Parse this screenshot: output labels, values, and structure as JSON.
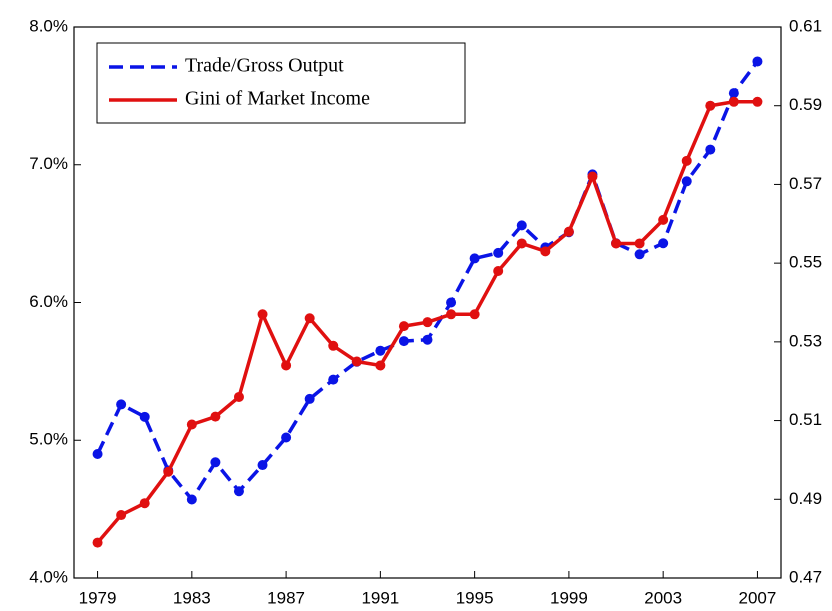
{
  "chart_data": {
    "type": "line",
    "x": [
      1979,
      1980,
      1981,
      1982,
      1983,
      1984,
      1985,
      1986,
      1987,
      1988,
      1989,
      1990,
      1991,
      1992,
      1993,
      1994,
      1995,
      1996,
      1997,
      1998,
      1999,
      2000,
      2001,
      2002,
      2003,
      2004,
      2005,
      2006,
      2007
    ],
    "series": [
      {
        "name": "Trade/Gross Output",
        "color": "#0a14e6",
        "line_style": "dashed",
        "axis": "y",
        "values": [
          4.9,
          5.26,
          5.17,
          4.78,
          4.57,
          4.84,
          4.63,
          4.82,
          5.02,
          5.3,
          5.44,
          5.57,
          5.65,
          5.72,
          5.73,
          6.0,
          6.32,
          6.36,
          6.56,
          6.4,
          6.51,
          6.93,
          6.43,
          6.35,
          6.43,
          6.88,
          7.11,
          7.52,
          7.75
        ]
      },
      {
        "name": "Gini of Market Income",
        "color": "#e01010",
        "line_style": "solid",
        "axis": "y2",
        "values": [
          0.479,
          0.486,
          0.489,
          0.497,
          0.509,
          0.511,
          0.516,
          0.537,
          0.524,
          0.536,
          0.529,
          0.525,
          0.524,
          0.534,
          0.535,
          0.537,
          0.537,
          0.548,
          0.555,
          0.553,
          0.558,
          0.572,
          0.555,
          0.555,
          0.561,
          0.576,
          0.59,
          0.591,
          0.591
        ]
      }
    ],
    "xlim": [
      1978,
      2008
    ],
    "xticks": [
      1979,
      1983,
      1987,
      1991,
      1995,
      1999,
      2003,
      2007
    ],
    "ylim": [
      4,
      8
    ],
    "yticks": [
      {
        "value": 4,
        "label": "4.0%"
      },
      {
        "value": 5,
        "label": "5.0%"
      },
      {
        "value": 6,
        "label": "6.0%"
      },
      {
        "value": 7,
        "label": "7.0%"
      },
      {
        "value": 8,
        "label": "8.0%"
      }
    ],
    "y2lim": [
      0.47,
      0.61
    ],
    "y2ticks": [
      0.47,
      0.49,
      0.51,
      0.53,
      0.55,
      0.57,
      0.59,
      0.61
    ],
    "legend": "upper left"
  }
}
